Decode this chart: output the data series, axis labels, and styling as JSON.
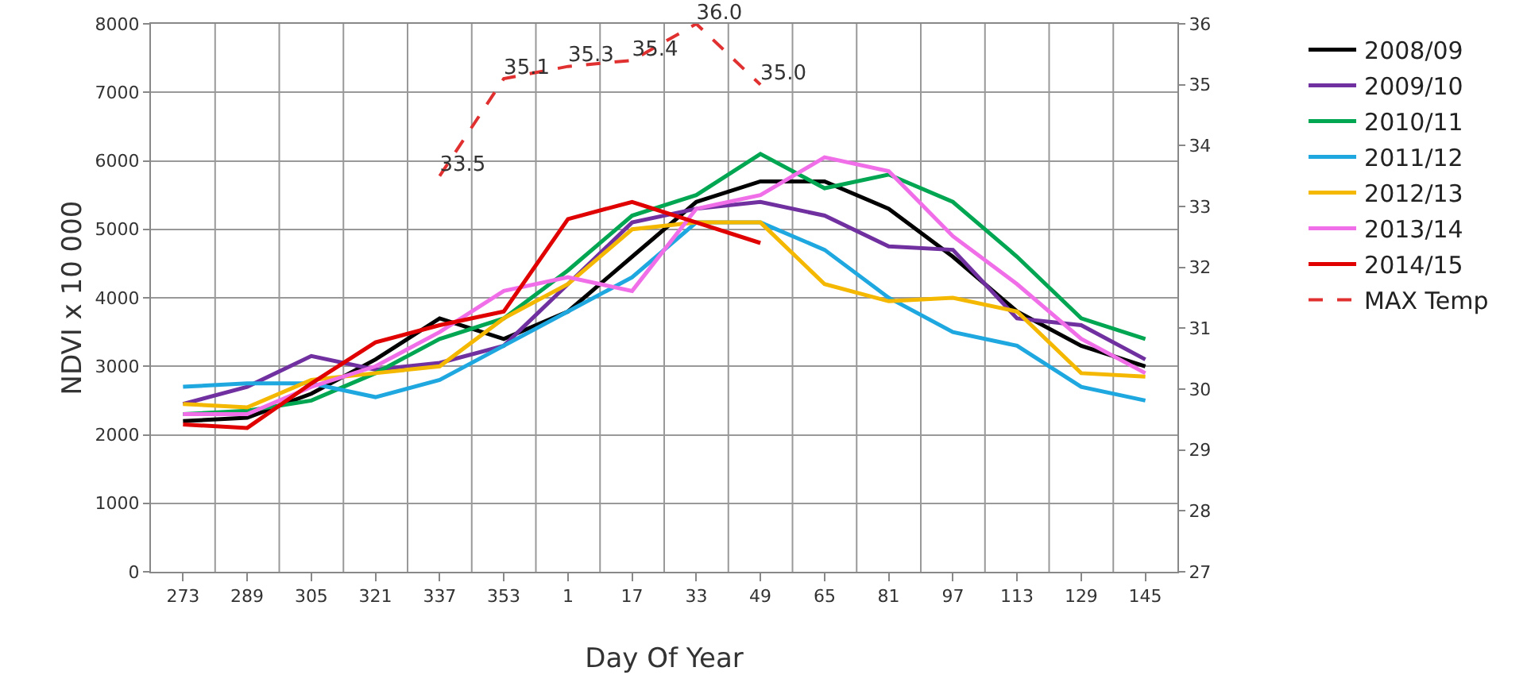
{
  "chart_data": {
    "type": "line",
    "xlabel": "Day Of Year",
    "ylabel": "NDVI x 10 000",
    "categories": [
      "273",
      "289",
      "305",
      "321",
      "337",
      "353",
      "1",
      "17",
      "33",
      "49",
      "65",
      "81",
      "97",
      "113",
      "129",
      "145"
    ],
    "ylim": [
      0,
      8000
    ],
    "yticks": [
      0,
      1000,
      2000,
      3000,
      4000,
      5000,
      6000,
      7000,
      8000
    ],
    "y2lim": [
      27,
      36
    ],
    "y2ticks": [
      27,
      28,
      29,
      30,
      31,
      32,
      33,
      34,
      35,
      36
    ],
    "grid": true,
    "legend": "right",
    "marker": "none",
    "series": [
      {
        "name": "2008/09",
        "color": "#000000",
        "values": [
          2200,
          2250,
          2600,
          3100,
          3700,
          3400,
          3800,
          4600,
          5400,
          5700,
          5700,
          5300,
          4600,
          3800,
          3300,
          3000
        ]
      },
      {
        "name": "2009/10",
        "color": "#7030a0",
        "values": [
          2450,
          2700,
          3150,
          2950,
          3050,
          3300,
          4200,
          5100,
          5300,
          5400,
          5200,
          4750,
          4700,
          3700,
          3600,
          3100
        ]
      },
      {
        "name": "2010/11",
        "color": "#00a651",
        "values": [
          2300,
          2350,
          2500,
          2900,
          3400,
          3700,
          4400,
          5200,
          5500,
          6100,
          5600,
          5800,
          5400,
          4600,
          3700,
          3400
        ]
      },
      {
        "name": "2011/12",
        "color": "#1fa8e0",
        "values": [
          2700,
          2750,
          2750,
          2550,
          2800,
          3300,
          3800,
          4300,
          5100,
          5100,
          4700,
          4000,
          3500,
          3300,
          2700,
          2500
        ]
      },
      {
        "name": "2012/13",
        "color": "#f5b800",
        "values": [
          2450,
          2400,
          2800,
          2900,
          3000,
          3700,
          4200,
          5000,
          5100,
          5100,
          4200,
          3950,
          4000,
          3800,
          2900,
          2850
        ]
      },
      {
        "name": "2013/14",
        "color": "#f06ee8",
        "values": [
          2300,
          2300,
          2700,
          3000,
          3500,
          4100,
          4300,
          4100,
          5300,
          5500,
          6050,
          5850,
          4900,
          4200,
          3400,
          2900
        ]
      },
      {
        "name": "2014/15",
        "color": "#e00000",
        "values": [
          2150,
          2100,
          2750,
          3350,
          3600,
          3800,
          5150,
          5400,
          5100,
          4800,
          null,
          null,
          null,
          null,
          null,
          null
        ]
      },
      {
        "name": "MAX Temp",
        "color": "#e03030",
        "axis": "y2",
        "line_style": "dashed",
        "values": [
          null,
          null,
          null,
          null,
          33.5,
          35.1,
          35.3,
          35.4,
          36.0,
          35.0,
          null,
          null,
          null,
          null,
          null,
          null
        ],
        "value_labels": [
          null,
          null,
          null,
          null,
          "33.5",
          "35.1",
          "35.3",
          "35.4",
          "36.0",
          "35.0",
          null,
          null,
          null,
          null,
          null,
          null
        ]
      }
    ]
  }
}
